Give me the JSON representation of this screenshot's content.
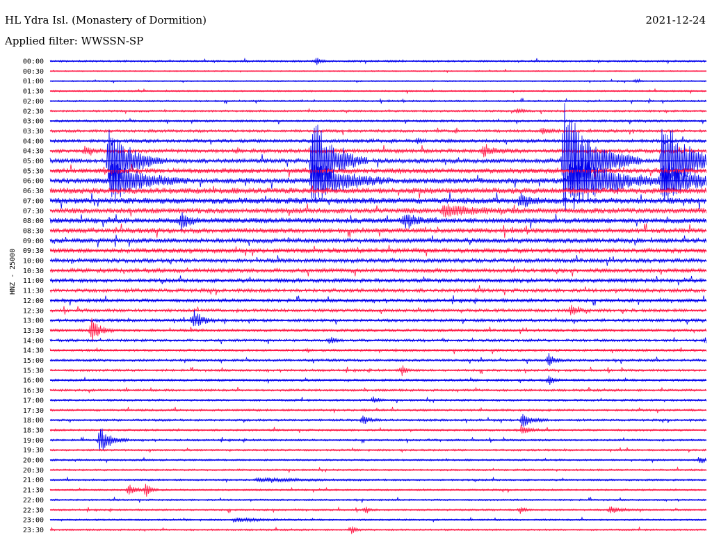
{
  "header": {
    "station": "HL Ydra Isl. (Monastery of Dormition)",
    "date": "2021-12-24",
    "filter": "Applied filter: WWSSN-SP",
    "channel": "HNZ - 25000"
  },
  "colors": {
    "trace_a": "#0000ee",
    "trace_b": "#ff1744"
  },
  "chart_data": {
    "type": "line",
    "title": "HL Ydra Isl. (Monastery of Dormition)",
    "subtitle": "Applied filter: WWSSN-SP",
    "ylabel": "HNZ - 25000",
    "xlabel": "",
    "row_labels": [
      "00:00",
      "00:30",
      "01:00",
      "01:30",
      "02:00",
      "02:30",
      "03:00",
      "03:30",
      "04:00",
      "04:30",
      "05:00",
      "05:30",
      "06:00",
      "06:30",
      "07:00",
      "07:30",
      "08:00",
      "08:30",
      "09:00",
      "09:30",
      "10:00",
      "10:30",
      "11:00",
      "11:30",
      "12:00",
      "12:30",
      "13:00",
      "13:30",
      "14:00",
      "14:30",
      "15:00",
      "15:30",
      "16:00",
      "16:30",
      "17:00",
      "17:30",
      "18:00",
      "18:30",
      "19:00",
      "19:30",
      "20:00",
      "20:30",
      "21:00",
      "21:30",
      "22:00",
      "22:30",
      "23:00",
      "23:30"
    ],
    "x_range_minutes": [
      0,
      30
    ],
    "activity_profile": [
      0.12,
      0.05,
      0.06,
      0.08,
      0.1,
      0.13,
      0.15,
      0.2,
      0.26,
      0.3,
      0.36,
      0.4,
      0.46,
      0.5,
      0.5,
      0.46,
      0.44,
      0.4,
      0.38,
      0.36,
      0.34,
      0.32,
      0.3,
      0.28,
      0.26,
      0.24,
      0.22,
      0.2,
      0.18,
      0.17,
      0.17,
      0.16,
      0.16,
      0.15,
      0.14,
      0.14,
      0.14,
      0.13,
      0.12,
      0.12,
      0.11,
      0.11,
      0.11,
      0.1,
      0.1,
      0.1,
      0.1,
      0.1
    ],
    "events": [
      {
        "row": 0,
        "minute": 12.2,
        "amp": 5,
        "dur": 0.5
      },
      {
        "row": 2,
        "minute": 26.8,
        "amp": 3,
        "dur": 0.3
      },
      {
        "row": 5,
        "minute": 21.4,
        "amp": 4,
        "dur": 0.6
      },
      {
        "row": 7,
        "minute": 22.5,
        "amp": 4,
        "dur": 1.2
      },
      {
        "row": 8,
        "minute": 16.8,
        "amp": 5,
        "dur": 0.6
      },
      {
        "row": 9,
        "minute": 1.6,
        "amp": 6,
        "dur": 1.0
      },
      {
        "row": 9,
        "minute": 19.8,
        "amp": 7,
        "dur": 1.8
      },
      {
        "row": 10,
        "minute": 2.7,
        "amp": 55,
        "dur": 2.5
      },
      {
        "row": 10,
        "minute": 12.0,
        "amp": 70,
        "dur": 2.5
      },
      {
        "row": 10,
        "minute": 23.5,
        "amp": 85,
        "dur": 3.5
      },
      {
        "row": 10,
        "minute": 28.0,
        "amp": 70,
        "dur": 3.0
      },
      {
        "row": 12,
        "minute": 2.8,
        "amp": 30,
        "dur": 3.5
      },
      {
        "row": 12,
        "minute": 12.0,
        "amp": 35,
        "dur": 3.5
      },
      {
        "row": 12,
        "minute": 23.8,
        "amp": 45,
        "dur": 4.5
      },
      {
        "row": 12,
        "minute": 28.0,
        "amp": 30,
        "dur": 3.5
      },
      {
        "row": 14,
        "minute": 21.5,
        "amp": 10,
        "dur": 1.2
      },
      {
        "row": 15,
        "minute": 18.0,
        "amp": 8,
        "dur": 4.0
      },
      {
        "row": 16,
        "minute": 6.0,
        "amp": 12,
        "dur": 1.0
      },
      {
        "row": 16,
        "minute": 16.2,
        "amp": 10,
        "dur": 1.5
      },
      {
        "row": 25,
        "minute": 23.8,
        "amp": 8,
        "dur": 0.8
      },
      {
        "row": 26,
        "minute": 6.6,
        "amp": 15,
        "dur": 1.0
      },
      {
        "row": 27,
        "minute": 1.9,
        "amp": 20,
        "dur": 1.0
      },
      {
        "row": 28,
        "minute": 12.8,
        "amp": 6,
        "dur": 0.6
      },
      {
        "row": 28,
        "minute": 30.0,
        "amp": 7,
        "dur": 0.8
      },
      {
        "row": 30,
        "minute": 22.8,
        "amp": 10,
        "dur": 0.7
      },
      {
        "row": 31,
        "minute": 16.1,
        "amp": 8,
        "dur": 0.5
      },
      {
        "row": 32,
        "minute": 22.8,
        "amp": 7,
        "dur": 0.6
      },
      {
        "row": 34,
        "minute": 14.8,
        "amp": 6,
        "dur": 0.5
      },
      {
        "row": 36,
        "minute": 14.3,
        "amp": 8,
        "dur": 0.8
      },
      {
        "row": 36,
        "minute": 21.6,
        "amp": 10,
        "dur": 1.2
      },
      {
        "row": 37,
        "minute": 21.6,
        "amp": 7,
        "dur": 0.8
      },
      {
        "row": 38,
        "minute": 2.3,
        "amp": 22,
        "dur": 1.3
      },
      {
        "row": 40,
        "minute": 29.7,
        "amp": 6,
        "dur": 0.6
      },
      {
        "row": 42,
        "minute": 9.5,
        "amp": 3,
        "dur": 5.0
      },
      {
        "row": 43,
        "minute": 3.6,
        "amp": 8,
        "dur": 1.0
      },
      {
        "row": 43,
        "minute": 4.4,
        "amp": 9,
        "dur": 0.6
      },
      {
        "row": 45,
        "minute": 14.4,
        "amp": 5,
        "dur": 0.6
      },
      {
        "row": 45,
        "minute": 21.5,
        "amp": 6,
        "dur": 0.6
      },
      {
        "row": 45,
        "minute": 25.6,
        "amp": 5,
        "dur": 1.5
      },
      {
        "row": 46,
        "minute": 8.5,
        "amp": 3,
        "dur": 3.0
      },
      {
        "row": 47,
        "minute": 13.8,
        "amp": 6,
        "dur": 0.5
      }
    ]
  }
}
